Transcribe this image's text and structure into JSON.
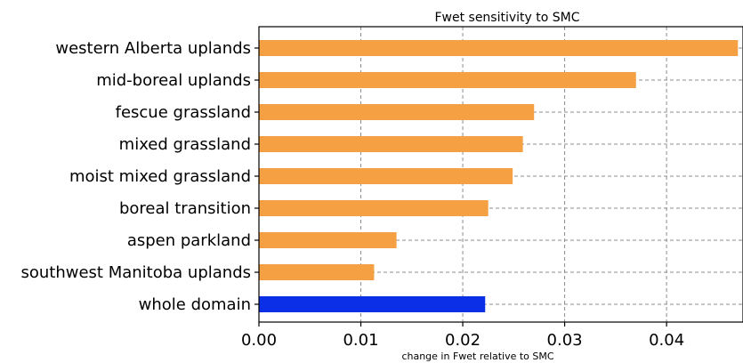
{
  "chart_data": {
    "type": "bar",
    "orientation": "horizontal",
    "title": "Fwet sensitivity to SMC",
    "xlabel": "change in Fwet relative to SMC",
    "ylabel": "",
    "xlim": [
      0,
      0.0475
    ],
    "grid": true,
    "x_ticks": [
      0,
      0.01,
      0.02,
      0.03,
      0.04
    ],
    "x_tick_labels": [
      "0.00",
      "0.01",
      "0.02",
      "0.03",
      "0.04"
    ],
    "categories": [
      "western Alberta uplands",
      "mid-boreal uplands",
      "fescue grassland",
      "mixed grassland",
      "moist mixed grassland",
      "boreal transition",
      "aspen parkland",
      "southwest Manitoba uplands",
      "whole domain"
    ],
    "values": [
      0.047,
      0.037,
      0.027,
      0.0259,
      0.0249,
      0.0225,
      0.0135,
      0.0113,
      0.0222
    ],
    "bar_colors": [
      "#f5a042",
      "#f5a042",
      "#f5a042",
      "#f5a042",
      "#f5a042",
      "#f5a042",
      "#f5a042",
      "#f5a042",
      "#0a2fe6"
    ]
  }
}
